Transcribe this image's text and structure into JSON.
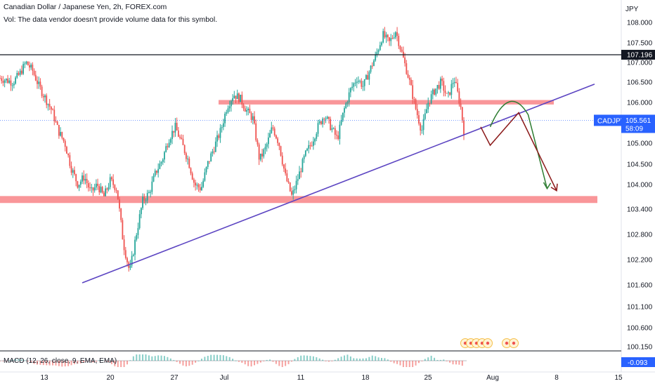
{
  "header": {
    "title": "Canadian Dollar / Japanese Yen, 2h, FOREX.com",
    "volume_note": "Vol: The data vendor doesn't provide volume data for this symbol."
  },
  "currency_label": "JPY",
  "macd": {
    "label": "MACD (12, 26, close, 9, EMA, EMA)",
    "value": "-0.093",
    "color": "#2962ff"
  },
  "price_badges": {
    "resistance_price": "107.196",
    "symbol": "CADJPY",
    "last_price": "105.561",
    "countdown": "58:09",
    "badge_color": "#2962ff"
  },
  "colors": {
    "up": "#26a69a",
    "down": "#ef5350",
    "zone": "#f7787c",
    "trendline": "#5c45c2",
    "proj_green": "#2e7d32",
    "proj_red": "#8b1a1a"
  },
  "chart_data": {
    "type": "candlestick",
    "title": "Canadian Dollar / Japanese Yen, 2h, FOREX.com",
    "y_unit": "JPY",
    "y_ticks": [
      "108.000",
      "107.500",
      "107.000",
      "106.500",
      "106.000",
      "105.000",
      "104.500",
      "104.000",
      "103.400",
      "102.800",
      "102.200",
      "101.600",
      "101.100",
      "100.600",
      "100.150"
    ],
    "x_ticks": [
      "13",
      "20",
      "27",
      "Jul",
      "11",
      "18",
      "25",
      "Aug",
      "8",
      "15"
    ],
    "price_path": [
      [
        0,
        106.6
      ],
      [
        2,
        106.5
      ],
      [
        3,
        106.7
      ],
      [
        4,
        107.0
      ],
      [
        5,
        106.8
      ],
      [
        6,
        106.4
      ],
      [
        7,
        106.1
      ],
      [
        8,
        105.8
      ],
      [
        9,
        105.3
      ],
      [
        10,
        105.0
      ],
      [
        11,
        104.4
      ],
      [
        12,
        104.0
      ],
      [
        13,
        104.2
      ],
      [
        14,
        103.8
      ],
      [
        15,
        104.0
      ],
      [
        16,
        103.7
      ],
      [
        17,
        104.1
      ],
      [
        18,
        103.9
      ],
      [
        19,
        102.6
      ],
      [
        20,
        101.9
      ],
      [
        21,
        102.8
      ],
      [
        22,
        103.6
      ],
      [
        23,
        103.8
      ],
      [
        24,
        104.3
      ],
      [
        25,
        104.6
      ],
      [
        26,
        105.1
      ],
      [
        27,
        105.4
      ],
      [
        28,
        105.0
      ],
      [
        29,
        104.6
      ],
      [
        30,
        104.0
      ],
      [
        31,
        103.9
      ],
      [
        32,
        104.5
      ],
      [
        33,
        104.9
      ],
      [
        34,
        105.3
      ],
      [
        35,
        105.9
      ],
      [
        36,
        106.2
      ],
      [
        37,
        106.1
      ],
      [
        38,
        105.8
      ],
      [
        39,
        105.6
      ],
      [
        40,
        104.6
      ],
      [
        41,
        104.9
      ],
      [
        42,
        105.4
      ],
      [
        43,
        105.0
      ],
      [
        44,
        104.2
      ],
      [
        45,
        103.7
      ],
      [
        46,
        104.2
      ],
      [
        47,
        104.7
      ],
      [
        48,
        105.0
      ],
      [
        49,
        105.4
      ],
      [
        50,
        105.7
      ],
      [
        51,
        105.4
      ],
      [
        52,
        105.1
      ],
      [
        53,
        105.8
      ],
      [
        54,
        106.3
      ],
      [
        55,
        106.6
      ],
      [
        56,
        106.4
      ],
      [
        57,
        106.8
      ],
      [
        58,
        107.2
      ],
      [
        59,
        107.7
      ],
      [
        60,
        107.5
      ],
      [
        61,
        107.8
      ],
      [
        62,
        107.2
      ],
      [
        63,
        106.6
      ],
      [
        64,
        105.9
      ],
      [
        65,
        105.3
      ],
      [
        66,
        106.0
      ],
      [
        67,
        106.3
      ],
      [
        68,
        106.5
      ],
      [
        69,
        106.1
      ],
      [
        70,
        106.6
      ],
      [
        71,
        105.9
      ],
      [
        71.5,
        105.3
      ]
    ],
    "annotations": {
      "resistance_line": 107.196,
      "supply_zone": [
        105.95,
        106.06
      ],
      "demand_zone": [
        103.55,
        103.72
      ],
      "trendline": {
        "from": [
          "Jun 17",
          101.65
        ],
        "to": [
          "Aug 10",
          106.45
        ]
      },
      "projection_green": [
        [
          "Jul 30",
          105.4
        ],
        [
          "Aug 1",
          106.05
        ],
        [
          "Aug 3",
          105.7
        ],
        [
          "Aug 5",
          103.9
        ]
      ],
      "projection_red": [
        [
          "Jul 29",
          105.4
        ],
        [
          "Jul 30",
          104.95
        ],
        [
          "Aug 2",
          105.75
        ],
        [
          "Aug 6",
          103.85
        ]
      ]
    }
  }
}
